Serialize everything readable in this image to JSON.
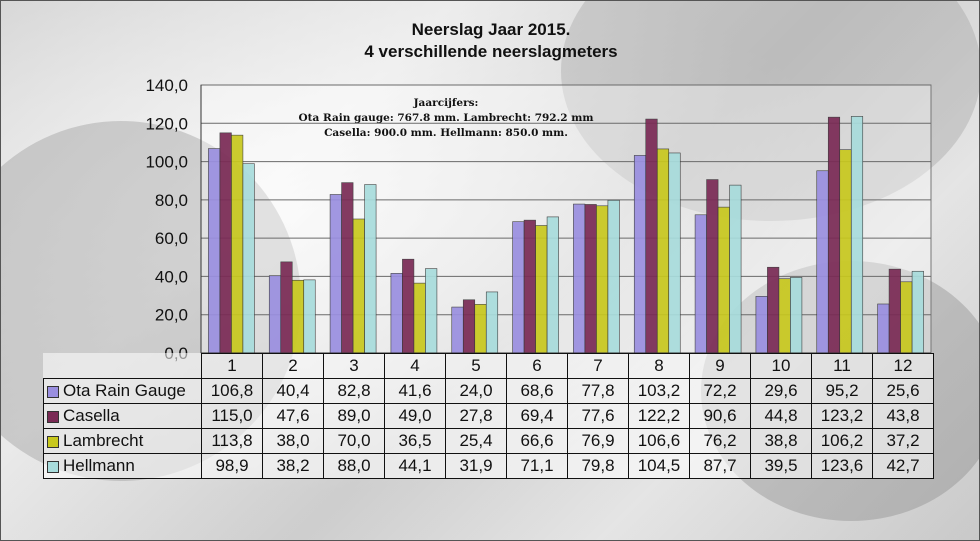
{
  "chart_data": {
    "type": "bar",
    "title": "Neerslag  Jaar 2015.",
    "subtitle": "4 verschillende  neerslagmeters",
    "categories": [
      "1",
      "2",
      "3",
      "4",
      "5",
      "6",
      "7",
      "8",
      "9",
      "10",
      "11",
      "12"
    ],
    "ylim": [
      0,
      140
    ],
    "yticks": [
      "0,0",
      "20,0",
      "40,0",
      "60,0",
      "80,0",
      "100,0",
      "120,0",
      "140,0"
    ],
    "grid": true,
    "legend": "table-below",
    "annotation": {
      "line1": "Jaarcijfers:",
      "line2": "Ota Rain gauge: 767.8 mm.  Lambrecht: 792.2 mm",
      "line3": "Casella: 900.0 mm.  Hellmann: 850.0 mm."
    },
    "series": [
      {
        "name": "Ota Rain Gauge",
        "color": "#9a8fe0",
        "values": [
          106.8,
          40.4,
          82.8,
          41.6,
          24.0,
          68.6,
          77.8,
          103.2,
          72.2,
          29.6,
          95.2,
          25.6
        ],
        "labels": [
          "106,8",
          "40,4",
          "82,8",
          "41,6",
          "24,0",
          "68,6",
          "77,8",
          "103,2",
          "72,2",
          "29,6",
          "95,2",
          "25,6"
        ]
      },
      {
        "name": "Casella",
        "color": "#7a2a55",
        "values": [
          115.0,
          47.6,
          89.0,
          49.0,
          27.8,
          69.4,
          77.6,
          122.2,
          90.6,
          44.8,
          123.2,
          43.8
        ],
        "labels": [
          "115,0",
          "47,6",
          "89,0",
          "49,0",
          "27,8",
          "69,4",
          "77,6",
          "122,2",
          "90,6",
          "44,8",
          "123,2",
          "43,8"
        ]
      },
      {
        "name": "Lambrecht",
        "color": "#c8c81e",
        "values": [
          113.8,
          38.0,
          70.0,
          36.5,
          25.4,
          66.6,
          76.9,
          106.6,
          76.2,
          38.8,
          106.2,
          37.2
        ],
        "labels": [
          "113,8",
          "38,0",
          "70,0",
          "36,5",
          "25,4",
          "66,6",
          "76,9",
          "106,6",
          "76,2",
          "38,8",
          "106,2",
          "37,2"
        ]
      },
      {
        "name": "Hellmann",
        "color": "#a8dcdc",
        "values": [
          98.9,
          38.2,
          88.0,
          44.1,
          31.9,
          71.1,
          79.8,
          104.5,
          87.7,
          39.5,
          123.6,
          42.7
        ],
        "labels": [
          "98,9",
          "38,2",
          "88,0",
          "44,1",
          "31,9",
          "71,1",
          "79,8",
          "104,5",
          "87,7",
          "39,5",
          "123,6",
          "42,7"
        ]
      }
    ]
  }
}
